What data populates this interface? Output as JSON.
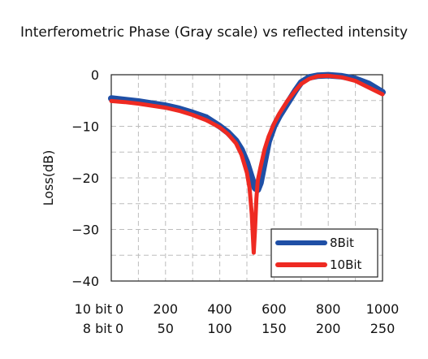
{
  "chart_data": {
    "type": "line",
    "title": "Interferometric Phase (Gray scale) vs reflected intensity",
    "ylabel": "Loss(dB)",
    "xlabel": "",
    "ylim": [
      -40,
      0
    ],
    "yticks": [
      0,
      -10,
      -20,
      -30,
      -40
    ],
    "xlim": [
      0,
      1000
    ],
    "x_axis_rows": [
      {
        "name": "10 bit",
        "ticks": [
          "0",
          "200",
          "400",
          "600",
          "800",
          "1000"
        ],
        "values": [
          0,
          200,
          400,
          600,
          800,
          1000
        ]
      },
      {
        "name": "8 bit",
        "ticks": [
          "0",
          "50",
          "100",
          "150",
          "200",
          "250"
        ],
        "values": [
          0,
          50,
          100,
          150,
          200,
          250
        ]
      }
    ],
    "grid": true,
    "legend": "bottom-right",
    "series": [
      {
        "name": "8Bit",
        "color": "#1f4fa6",
        "x": [
          0,
          50,
          100,
          150,
          200,
          250,
          300,
          350,
          400,
          430,
          460,
          480,
          500,
          515,
          530,
          540,
          550,
          565,
          580,
          600,
          620,
          650,
          680,
          700,
          730,
          760,
          800,
          850,
          900,
          950,
          1000
        ],
        "y": [
          -4.6,
          -4.9,
          -5.2,
          -5.6,
          -6.0,
          -6.6,
          -7.4,
          -8.3,
          -10.0,
          -11.2,
          -12.8,
          -14.5,
          -17.0,
          -19.5,
          -22.0,
          -22.3,
          -21.0,
          -17.0,
          -13.0,
          -10.0,
          -8.0,
          -5.5,
          -3.0,
          -1.5,
          -0.5,
          -0.2,
          -0.1,
          -0.3,
          -0.8,
          -1.8,
          -3.4
        ]
      },
      {
        "name": "10Bit",
        "color": "#ee2a22",
        "x": [
          0,
          50,
          100,
          150,
          200,
          250,
          300,
          350,
          400,
          430,
          460,
          480,
          500,
          510,
          518,
          525,
          530,
          535,
          540,
          550,
          565,
          580,
          600,
          620,
          650,
          680,
          700,
          730,
          760,
          800,
          850,
          900,
          950,
          1000
        ],
        "y": [
          -5.1,
          -5.3,
          -5.6,
          -6.0,
          -6.4,
          -7.0,
          -7.8,
          -8.8,
          -10.2,
          -11.5,
          -13.3,
          -15.5,
          -19.0,
          -22.0,
          -27.0,
          -34.5,
          -30.0,
          -24.0,
          -20.5,
          -18.0,
          -14.5,
          -12.0,
          -9.5,
          -7.5,
          -5.0,
          -3.0,
          -1.8,
          -0.8,
          -0.3,
          -0.2,
          -0.5,
          -1.2,
          -2.5,
          -3.8
        ]
      }
    ]
  }
}
